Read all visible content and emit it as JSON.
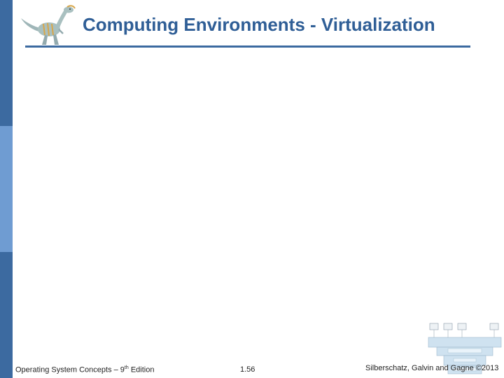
{
  "slide": {
    "title": "Computing Environments - Virtualization"
  },
  "footer": {
    "left_prefix": "Operating System Concepts – 9",
    "left_sup": "th",
    "left_suffix": " Edition",
    "center": "1.56",
    "right": "Silberschatz, Galvin and Gagne ©2013"
  },
  "colors": {
    "accent": "#3c6aa0",
    "accent_light": "#6f9cd2",
    "title": "#2f5e96"
  },
  "icons": {
    "logo": "dinosaur-icon"
  }
}
